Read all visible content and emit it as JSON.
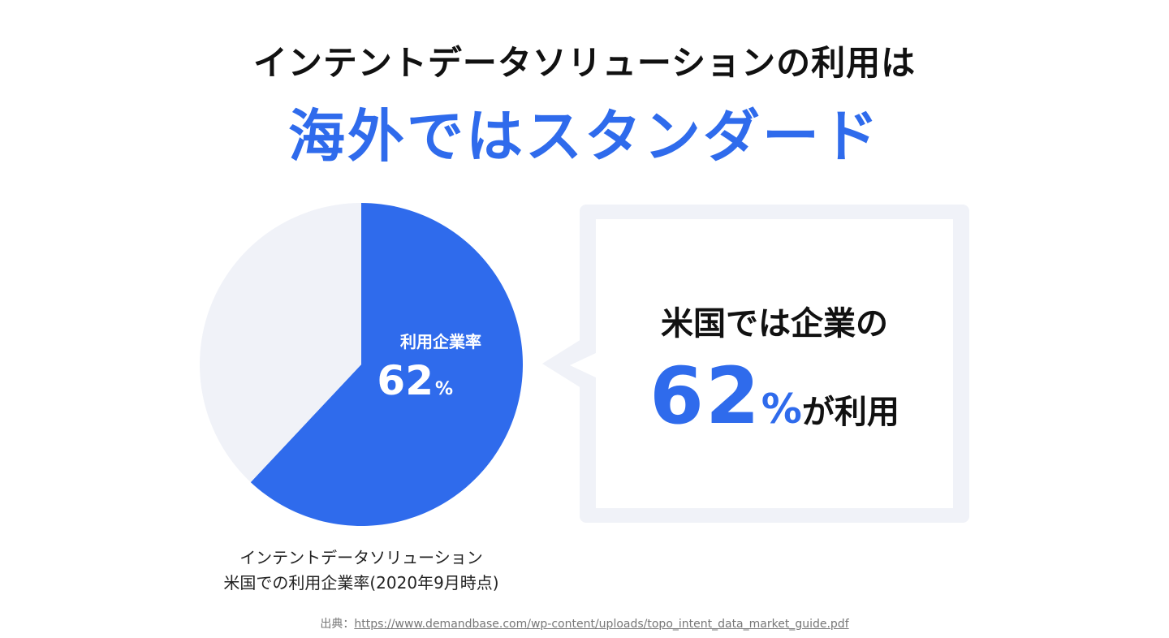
{
  "title": {
    "line1": "インテントデータソリューションの利用は",
    "line2": "海外ではスタンダード"
  },
  "chart_data": {
    "type": "pie",
    "slices": [
      {
        "label": "利用企業率",
        "value": 62,
        "color": "#2f6bec"
      },
      {
        "label": "",
        "value": 38,
        "color": "#f0f2f8"
      }
    ],
    "slice_label": "利用企業率",
    "slice_value": "62",
    "slice_unit": "%",
    "caption_line1": "インテントデータソリューション",
    "caption_line2": "米国での利用企業率(2020年9月時点)"
  },
  "callout": {
    "line1": "米国では企業の",
    "number": "62",
    "unit": "%",
    "suffix": "が利用"
  },
  "source": {
    "prefix": "出典：",
    "url": "https://www.demandbase.com/wp-content/uploads/topo_intent_data_market_guide.pdf"
  },
  "colors": {
    "accent": "#2f6bec",
    "pie_remainder": "#f0f2f8",
    "bubble_frame": "#f0f2f8"
  }
}
